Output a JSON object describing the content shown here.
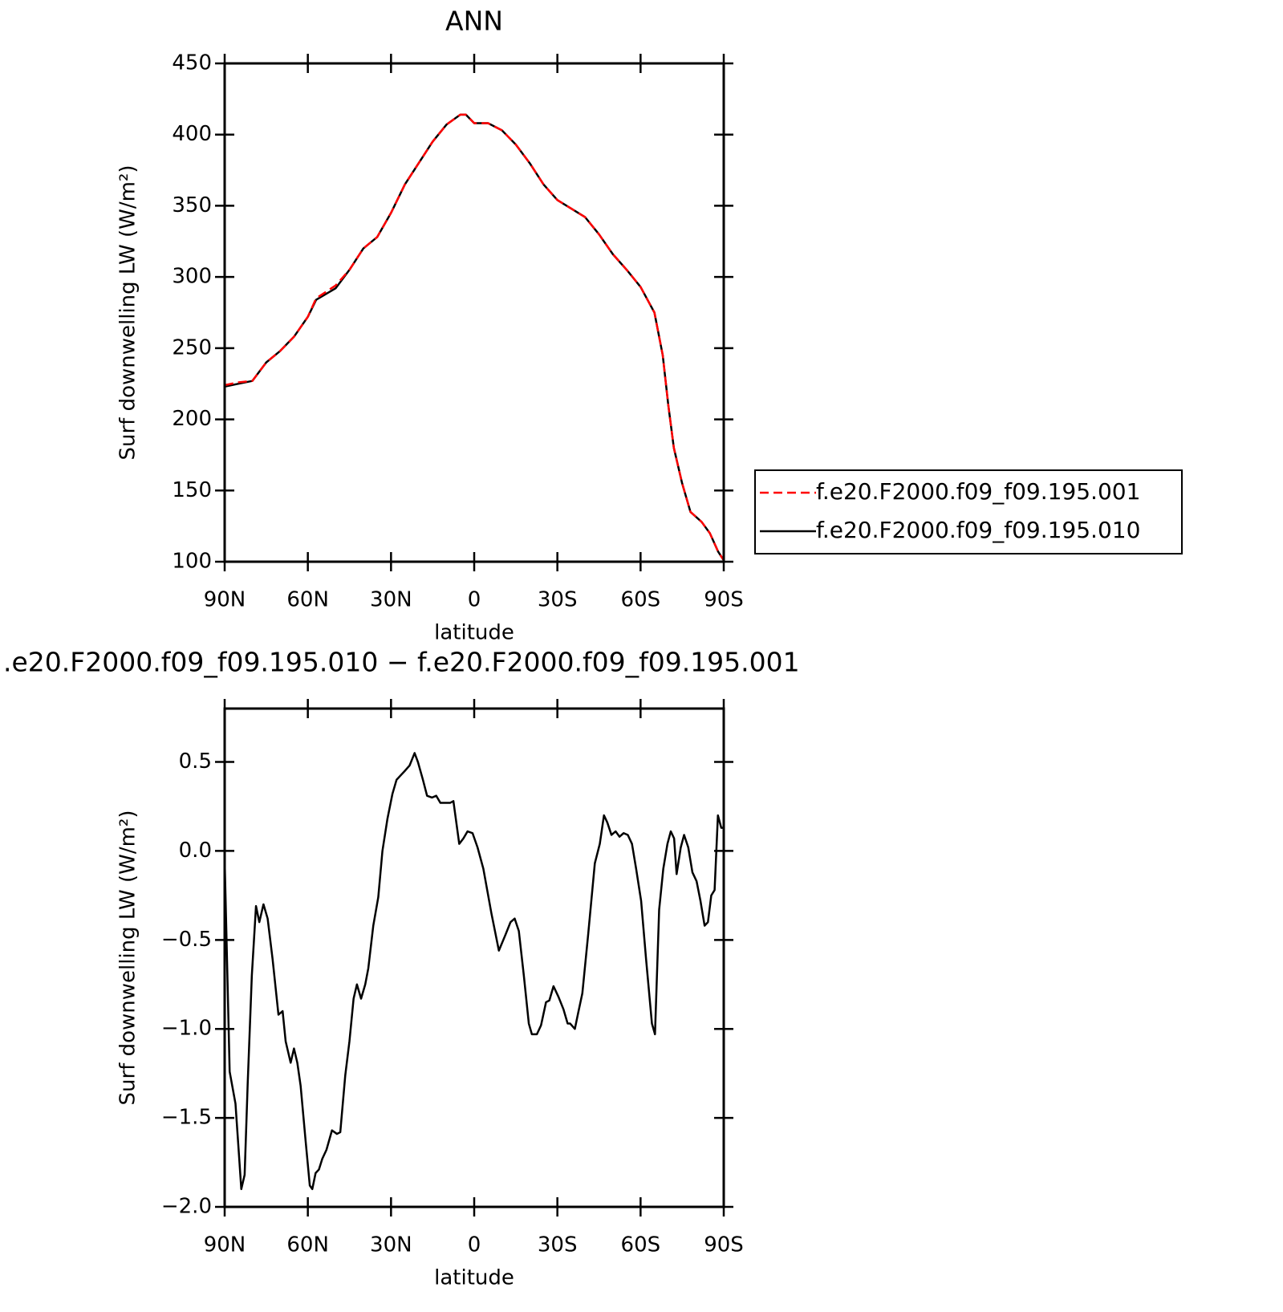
{
  "chart_data": [
    {
      "type": "line",
      "title": "ANN",
      "x_label": "latitude",
      "y_label": "Surf downwelling LW (W/m²)",
      "xlim": [
        90,
        -90
      ],
      "xticks": [
        {
          "value": 90,
          "label": "90N"
        },
        {
          "value": 60,
          "label": "60N"
        },
        {
          "value": 30,
          "label": "30N"
        },
        0,
        {
          "value": -30,
          "label": "30S"
        },
        {
          "value": -60,
          "label": "60S"
        },
        {
          "value": -90,
          "label": "90S"
        }
      ],
      "ylim": [
        100,
        450
      ],
      "yticks": [
        100,
        150,
        200,
        250,
        300,
        350,
        400,
        450
      ],
      "x": [
        90,
        85,
        80,
        75,
        70,
        65,
        60,
        57,
        50,
        45,
        40,
        35,
        30,
        25,
        20,
        15,
        10,
        5,
        3,
        0,
        -5,
        -10,
        -15,
        -20,
        -25,
        -30,
        -35,
        -40,
        -45,
        -50,
        -55,
        -60,
        -65,
        -68,
        -70,
        -72,
        -75,
        -78,
        -82,
        -85,
        -88,
        -90
      ],
      "series": [
        {
          "name": "f.e20.F2000.f09_f09.195.010",
          "color": "#000000",
          "dash": "solid",
          "values": [
            223,
            225,
            227,
            240,
            248,
            258,
            272,
            284,
            292,
            305,
            320,
            328,
            345,
            365,
            380,
            395,
            407,
            414,
            414,
            408,
            408,
            403,
            393,
            380,
            365,
            354,
            348,
            342,
            330,
            316,
            305,
            293,
            275,
            245,
            210,
            180,
            155,
            135,
            128,
            120,
            107,
            101
          ]
        },
        {
          "name": "f.e20.F2000.f09_f09.195.001",
          "color": "#ff0000",
          "dash": "dashed",
          "values": [
            224,
            226,
            227,
            240,
            248,
            258,
            272,
            285,
            294,
            305,
            320,
            328,
            345,
            365,
            380,
            395,
            407,
            414,
            414,
            408,
            408,
            403,
            393,
            380,
            365,
            354,
            348,
            342,
            330,
            316,
            305,
            293,
            275,
            245,
            210,
            180,
            155,
            135,
            128,
            120,
            107,
            101
          ]
        }
      ],
      "legend_order": [
        "f.e20.F2000.f09_f09.195.001",
        "f.e20.F2000.f09_f09.195.010"
      ]
    },
    {
      "type": "line",
      "title": ".e20.F2000.f09_f09.195.010 − f.e20.F2000.f09_f09.195.001",
      "x_label": "latitude",
      "y_label": "Surf downwelling LW (W/m²)",
      "xlim": [
        90,
        -90
      ],
      "xticks": [
        {
          "value": 90,
          "label": "90N"
        },
        {
          "value": 60,
          "label": "60N"
        },
        {
          "value": 30,
          "label": "30N"
        },
        0,
        {
          "value": -30,
          "label": "30S"
        },
        {
          "value": -60,
          "label": "60S"
        },
        {
          "value": -90,
          "label": "90S"
        }
      ],
      "ylim": [
        -2,
        0.8
      ],
      "yticks": [
        {
          "value": -2,
          "label": "−2.0"
        },
        {
          "value": -1.5,
          "label": "−1.5"
        },
        {
          "value": -1,
          "label": "−1.0"
        },
        {
          "value": -0.5,
          "label": "−0.5"
        },
        {
          "value": 0,
          "label": "0.0"
        },
        0.5
      ],
      "x": [
        90,
        88.2,
        86.1,
        84,
        82.8,
        81.7,
        80.2,
        78.7,
        77.5,
        76,
        74.5,
        72.7,
        70.6,
        69.1,
        68,
        66.2,
        65,
        63.8,
        62.6,
        60.8,
        59.3,
        58.4,
        57.2,
        56,
        54.8,
        53.3,
        51.3,
        49.5,
        48.3,
        46.5,
        45,
        43.5,
        42.3,
        40.8,
        39.3,
        38.2,
        36.4,
        34.6,
        33.1,
        31.3,
        29.5,
        28,
        26.2,
        25,
        23.3,
        21.5,
        20.3,
        18.5,
        17,
        15.2,
        13.7,
        12.2,
        10.1,
        8.7,
        7.5,
        5.4,
        3.9,
        2.4,
        0.6,
        -1.2,
        -3.3,
        -6.2,
        -8.9,
        -11.3,
        -13.1,
        -14.6,
        -16.1,
        -17.9,
        -19.7,
        -20.8,
        -22.6,
        -24.1,
        -25.9,
        -27.1,
        -28.6,
        -30.4,
        -32.2,
        -33.7,
        -34.6,
        -36.3,
        -37.5,
        -39,
        -41.1,
        -43.5,
        -45.3,
        -46.8,
        -48,
        -49.5,
        -51,
        -52.4,
        -53.9,
        -55.4,
        -56.9,
        -58.4,
        -60.2,
        -62,
        -64.1,
        -65.2,
        -66.7,
        -68.2,
        -69.7,
        -70.9,
        -72.1,
        -73,
        -74.5,
        -75.7,
        -77.2,
        -78.7,
        -80.2,
        -81.6,
        -83.1,
        -84.3,
        -85.5,
        -86.7,
        -87.9,
        -89.1,
        -90
      ],
      "series": [
        {
          "color": "#000000",
          "dash": "solid",
          "values": [
            -0.05,
            -1.24,
            -1.42,
            -1.9,
            -1.82,
            -1.31,
            -0.7,
            -0.31,
            -0.4,
            -0.3,
            -0.38,
            -0.61,
            -0.92,
            -0.9,
            -1.07,
            -1.19,
            -1.11,
            -1.19,
            -1.32,
            -1.63,
            -1.88,
            -1.9,
            -1.81,
            -1.79,
            -1.73,
            -1.68,
            -1.57,
            -1.59,
            -1.58,
            -1.26,
            -1.07,
            -0.83,
            -0.75,
            -0.83,
            -0.75,
            -0.66,
            -0.42,
            -0.26,
            0,
            0.18,
            0.32,
            0.4,
            0.43,
            0.45,
            0.48,
            0.55,
            0.5,
            0.4,
            0.31,
            0.3,
            0.31,
            0.27,
            0.27,
            0.27,
            0.28,
            0.04,
            0.07,
            0.11,
            0.1,
            0.02,
            -0.1,
            -0.35,
            -0.56,
            -0.47,
            -0.4,
            -0.38,
            -0.45,
            -0.7,
            -0.97,
            -1.03,
            -1.03,
            -0.98,
            -0.85,
            -0.84,
            -0.76,
            -0.82,
            -0.89,
            -0.97,
            -0.97,
            -1,
            -0.91,
            -0.8,
            -0.47,
            -0.07,
            0.04,
            0.2,
            0.16,
            0.09,
            0.11,
            0.08,
            0.1,
            0.09,
            0.04,
            -0.1,
            -0.28,
            -0.61,
            -0.97,
            -1.03,
            -0.33,
            -0.1,
            0.04,
            0.11,
            0.07,
            -0.13,
            0.02,
            0.09,
            0.02,
            -0.12,
            -0.17,
            -0.28,
            -0.42,
            -0.4,
            -0.25,
            -0.22,
            0.2,
            0.13,
            0.13
          ]
        }
      ]
    }
  ]
}
